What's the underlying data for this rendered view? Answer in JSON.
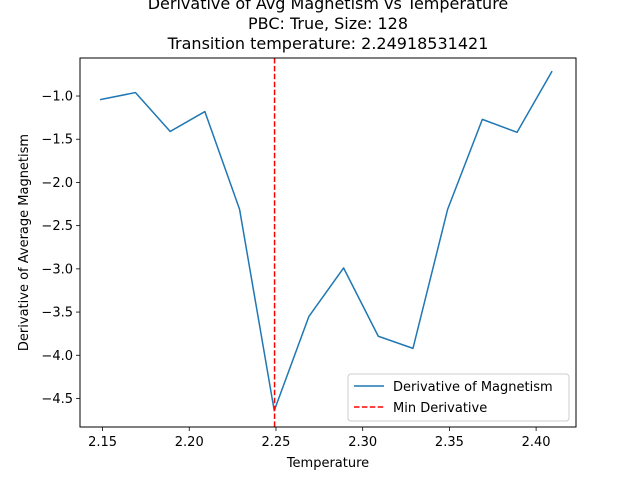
{
  "chart_data": {
    "type": "line",
    "title_lines": [
      "Derivative of Avg Magnetism vs Temperature",
      "PBC: True, Size: 128",
      "Transition temperature: 2.24918531421"
    ],
    "xlabel": "Temperature",
    "ylabel": "Derivative of Average Magnetism",
    "xlim": [
      2.137,
      2.423
    ],
    "ylim": [
      -4.83,
      -0.56
    ],
    "xticks": [
      2.15,
      2.2,
      2.25,
      2.3,
      2.35,
      2.4
    ],
    "xtick_labels": [
      "2.15",
      "2.20",
      "2.25",
      "2.30",
      "2.35",
      "2.40"
    ],
    "yticks": [
      -1.0,
      -1.5,
      -2.0,
      -2.5,
      -3.0,
      -3.5,
      -4.0,
      -4.5
    ],
    "ytick_labels": [
      "−1.0",
      "−1.5",
      "−2.0",
      "−2.5",
      "−3.0",
      "−3.5",
      "−4.0",
      "−4.5"
    ],
    "grid": false,
    "legend_position": "lower-right",
    "series": [
      {
        "name": "Derivative of Magnetism",
        "color": "#1f77b4",
        "style": "solid",
        "x": [
          2.149,
          2.169,
          2.189,
          2.209,
          2.229,
          2.249,
          2.269,
          2.289,
          2.309,
          2.329,
          2.349,
          2.369,
          2.389,
          2.409
        ],
        "y": [
          -1.04,
          -0.96,
          -1.41,
          -1.18,
          -2.31,
          -4.64,
          -3.55,
          -2.99,
          -3.78,
          -3.92,
          -2.31,
          -1.27,
          -1.42,
          -0.72
        ]
      }
    ],
    "vlines": [
      {
        "name": "Min Derivative",
        "color": "#ff0000",
        "style": "dashed",
        "x": 2.24918531421
      }
    ]
  }
}
